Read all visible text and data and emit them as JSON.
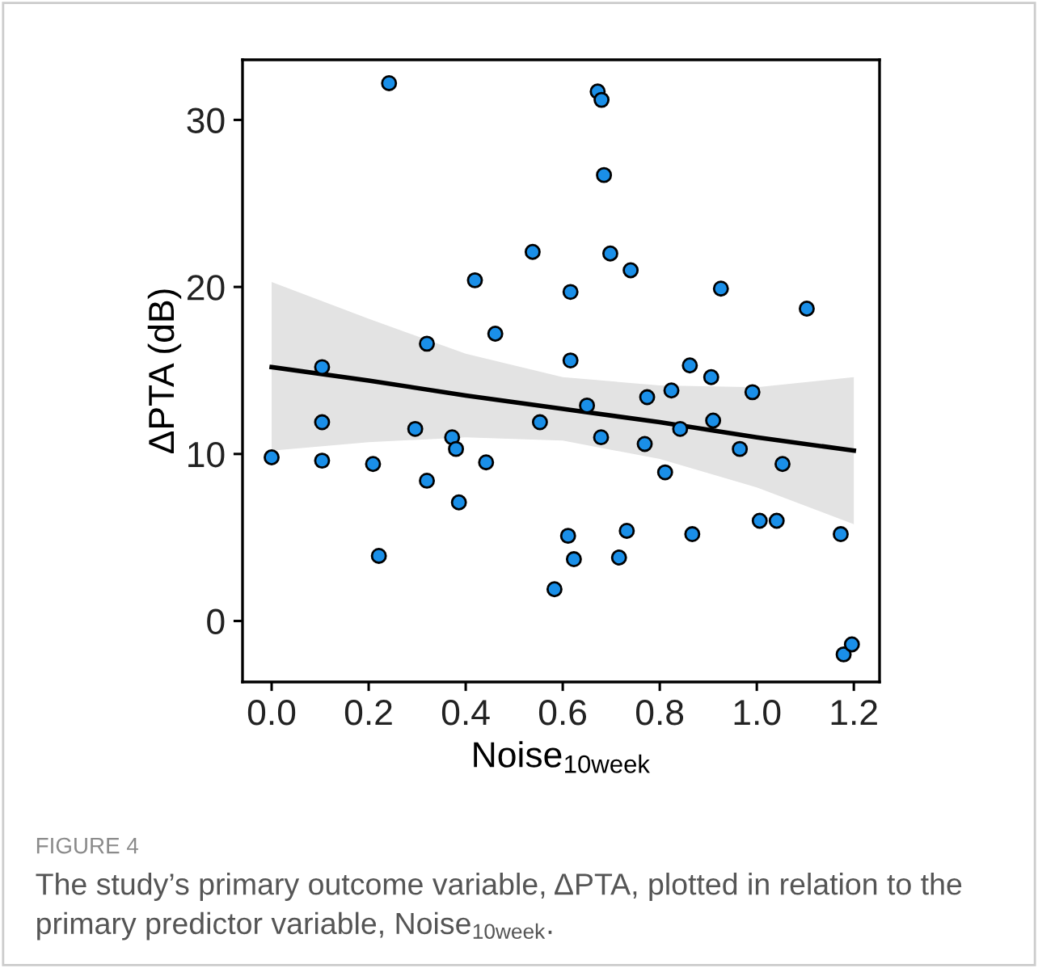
{
  "chart_data": {
    "type": "scatter",
    "xlabel": "Noise$_{10week}$",
    "ylabel": "ΔPTA (dB)",
    "xlim": [
      -0.06,
      1.253
    ],
    "ylim": [
      -3.65,
      33.6
    ],
    "xticks": [
      {
        "value": 0,
        "label": "0.0"
      },
      {
        "value": 0.2,
        "label": "0.2"
      },
      {
        "value": 0.4,
        "label": "0.4"
      },
      {
        "value": 0.6,
        "label": "0.6"
      },
      {
        "value": 0.8,
        "label": "0.8"
      },
      {
        "value": 1.0,
        "label": "1.0"
      },
      {
        "value": 1.2,
        "label": "1.2"
      }
    ],
    "yticks": [
      0,
      10,
      20,
      30
    ],
    "grid": false,
    "marker": "circle",
    "series": [
      {
        "color": "#1a8fe8",
        "x": [
          0.0,
          0.104,
          0.104,
          0.104,
          0.209,
          0.221,
          0.242,
          0.296,
          0.32,
          0.32,
          0.372,
          0.38,
          0.386,
          0.419,
          0.442,
          0.461,
          0.538,
          0.553,
          0.583,
          0.611,
          0.616,
          0.616,
          0.623,
          0.65,
          0.672,
          0.679,
          0.68,
          0.685,
          0.698,
          0.716,
          0.732,
          0.74,
          0.769,
          0.774,
          0.811,
          0.824,
          0.842,
          0.862,
          0.867,
          0.906,
          0.91,
          0.926,
          0.965,
          0.991,
          1.006,
          1.041,
          1.053,
          1.103,
          1.173,
          1.179,
          1.196
        ],
        "values": [
          9.8,
          15.2,
          11.9,
          9.6,
          9.4,
          3.9,
          32.2,
          11.5,
          16.6,
          8.4,
          11.0,
          10.3,
          7.1,
          20.4,
          9.5,
          17.2,
          22.1,
          11.9,
          1.9,
          5.1,
          19.7,
          15.6,
          3.7,
          12.9,
          31.7,
          11.0,
          31.2,
          26.7,
          22.0,
          3.8,
          5.4,
          21.0,
          10.6,
          13.4,
          8.9,
          13.8,
          11.5,
          15.3,
          5.2,
          14.6,
          12.0,
          19.9,
          10.3,
          13.7,
          6.0,
          6.0,
          9.4,
          18.7,
          5.2,
          -2.0,
          -1.4
        ]
      },
      {
        "type": "line",
        "color": "#000000",
        "marker": "none",
        "x": [
          0,
          0.2,
          0.4,
          0.6,
          0.8,
          1.0,
          1.2
        ],
        "values": [
          15.2,
          14.4,
          13.5,
          12.7,
          11.9,
          11.0,
          10.2
        ],
        "lower": [
          10.2,
          10.7,
          11.0,
          10.8,
          9.7,
          8.0,
          5.8
        ],
        "upper": [
          20.3,
          18.1,
          16.0,
          14.6,
          14.1,
          14.0,
          14.6
        ]
      }
    ],
    "annotations": [
      "FIGURE 4",
      "The study’s primary outcome variable, ΔPTA, plotted in relation to the primary predictor variable, Noise$_{10week}$."
    ]
  }
}
